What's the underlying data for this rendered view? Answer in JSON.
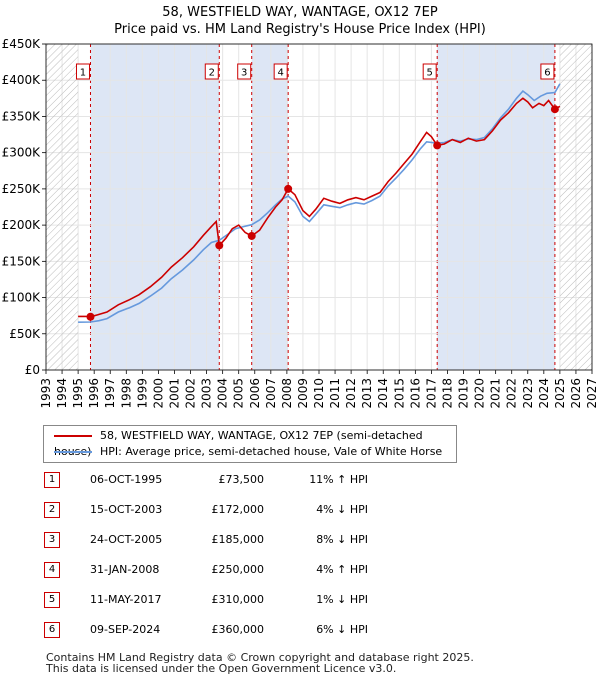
{
  "title": "58, WESTFIELD WAY, WANTAGE, OX12 7EP",
  "subtitle": "Price paid vs. HM Land Registry's House Price Index (HPI)",
  "colors": {
    "property": "#cc0000",
    "hpi": "#6699dd",
    "band": "#dde6f5",
    "hatch": "#bbbbbb",
    "grid": "#e5e5e5"
  },
  "chart_data": {
    "type": "line",
    "title": "58, WESTFIELD WAY, WANTAGE, OX12 7EP — Price paid vs. HM Land Registry's House Price Index (HPI)",
    "xlim": [
      1993,
      2027
    ],
    "ylim": [
      0,
      450000
    ],
    "x_ticks": [
      "1993",
      "1994",
      "1995",
      "1996",
      "1997",
      "1998",
      "1999",
      "2000",
      "2001",
      "2002",
      "2003",
      "2004",
      "2005",
      "2006",
      "2007",
      "2008",
      "2009",
      "2010",
      "2011",
      "2012",
      "2013",
      "2014",
      "2015",
      "2016",
      "2017",
      "2018",
      "2019",
      "2020",
      "2021",
      "2022",
      "2023",
      "2024",
      "2025",
      "2026",
      "2027"
    ],
    "y_ticks": [
      {
        "value": 0,
        "label": "£0"
      },
      {
        "value": 50000,
        "label": "£50K"
      },
      {
        "value": 100000,
        "label": "£100K"
      },
      {
        "value": 150000,
        "label": "£150K"
      },
      {
        "value": 200000,
        "label": "£200K"
      },
      {
        "value": 250000,
        "label": "£250K"
      },
      {
        "value": 300000,
        "label": "£300K"
      },
      {
        "value": 350000,
        "label": "£350K"
      },
      {
        "value": 400000,
        "label": "£400K"
      },
      {
        "value": 450000,
        "label": "£450K"
      }
    ],
    "data_range": [
      1995.0,
      2025.0
    ],
    "series": [
      {
        "name": "58, WESTFIELD WAY, WANTAGE, OX12 7EP (semi-detached house)",
        "color": "#cc0000",
        "points": [
          [
            1995.0,
            74000
          ],
          [
            1995.5,
            74000
          ],
          [
            1995.77,
            73500
          ],
          [
            1996.2,
            76000
          ],
          [
            1996.8,
            80000
          ],
          [
            1997.5,
            90000
          ],
          [
            1998.2,
            97000
          ],
          [
            1998.8,
            104000
          ],
          [
            1999.5,
            115000
          ],
          [
            2000.2,
            128000
          ],
          [
            2000.8,
            142000
          ],
          [
            2001.5,
            155000
          ],
          [
            2002.2,
            170000
          ],
          [
            2002.8,
            186000
          ],
          [
            2003.3,
            198000
          ],
          [
            2003.6,
            205000
          ],
          [
            2003.79,
            172000
          ],
          [
            2004.2,
            182000
          ],
          [
            2004.6,
            195000
          ],
          [
            2005.0,
            200000
          ],
          [
            2005.4,
            190000
          ],
          [
            2005.81,
            185000
          ],
          [
            2006.3,
            193000
          ],
          [
            2006.8,
            210000
          ],
          [
            2007.3,
            225000
          ],
          [
            2007.7,
            235000
          ],
          [
            2008.08,
            250000
          ],
          [
            2008.5,
            242000
          ],
          [
            2009.0,
            220000
          ],
          [
            2009.4,
            212000
          ],
          [
            2009.8,
            222000
          ],
          [
            2010.3,
            237000
          ],
          [
            2010.8,
            233000
          ],
          [
            2011.3,
            230000
          ],
          [
            2011.8,
            235000
          ],
          [
            2012.3,
            238000
          ],
          [
            2012.8,
            235000
          ],
          [
            2013.3,
            240000
          ],
          [
            2013.8,
            245000
          ],
          [
            2014.3,
            260000
          ],
          [
            2014.8,
            272000
          ],
          [
            2015.3,
            285000
          ],
          [
            2015.8,
            298000
          ],
          [
            2016.3,
            315000
          ],
          [
            2016.7,
            328000
          ],
          [
            2017.0,
            322000
          ],
          [
            2017.36,
            310000
          ],
          [
            2017.8,
            312000
          ],
          [
            2018.3,
            318000
          ],
          [
            2018.8,
            314000
          ],
          [
            2019.3,
            320000
          ],
          [
            2019.8,
            316000
          ],
          [
            2020.3,
            318000
          ],
          [
            2020.8,
            330000
          ],
          [
            2021.3,
            345000
          ],
          [
            2021.8,
            355000
          ],
          [
            2022.3,
            368000
          ],
          [
            2022.7,
            375000
          ],
          [
            2023.0,
            370000
          ],
          [
            2023.3,
            362000
          ],
          [
            2023.7,
            368000
          ],
          [
            2024.0,
            365000
          ],
          [
            2024.3,
            372000
          ],
          [
            2024.69,
            360000
          ],
          [
            2025.0,
            364000
          ]
        ]
      },
      {
        "name": "HPI: Average price, semi-detached house, Vale of White Horse",
        "color": "#6699dd",
        "points": [
          [
            1995.0,
            66000
          ],
          [
            1995.77,
            66200
          ],
          [
            1996.3,
            68000
          ],
          [
            1996.8,
            71000
          ],
          [
            1997.5,
            80000
          ],
          [
            1998.2,
            86000
          ],
          [
            1998.8,
            92000
          ],
          [
            1999.5,
            102000
          ],
          [
            2000.2,
            113000
          ],
          [
            2000.8,
            126000
          ],
          [
            2001.5,
            138000
          ],
          [
            2002.2,
            152000
          ],
          [
            2002.8,
            166000
          ],
          [
            2003.3,
            176000
          ],
          [
            2003.79,
            179000
          ],
          [
            2004.3,
            187000
          ],
          [
            2004.8,
            195000
          ],
          [
            2005.3,
            198000
          ],
          [
            2005.81,
            200500
          ],
          [
            2006.3,
            207000
          ],
          [
            2006.8,
            217000
          ],
          [
            2007.3,
            228000
          ],
          [
            2007.7,
            236000
          ],
          [
            2008.08,
            240000
          ],
          [
            2008.5,
            232000
          ],
          [
            2009.0,
            212000
          ],
          [
            2009.4,
            205000
          ],
          [
            2009.8,
            215000
          ],
          [
            2010.3,
            228000
          ],
          [
            2010.8,
            226000
          ],
          [
            2011.3,
            224000
          ],
          [
            2011.8,
            228000
          ],
          [
            2012.3,
            231000
          ],
          [
            2012.8,
            229000
          ],
          [
            2013.3,
            234000
          ],
          [
            2013.8,
            240000
          ],
          [
            2014.3,
            254000
          ],
          [
            2014.8,
            265000
          ],
          [
            2015.3,
            277000
          ],
          [
            2015.8,
            290000
          ],
          [
            2016.3,
            305000
          ],
          [
            2016.7,
            315000
          ],
          [
            2017.36,
            313000
          ],
          [
            2017.8,
            314000
          ],
          [
            2018.3,
            318000
          ],
          [
            2018.8,
            316000
          ],
          [
            2019.3,
            319000
          ],
          [
            2019.8,
            318000
          ],
          [
            2020.3,
            321000
          ],
          [
            2020.8,
            333000
          ],
          [
            2021.3,
            348000
          ],
          [
            2021.8,
            360000
          ],
          [
            2022.3,
            375000
          ],
          [
            2022.7,
            385000
          ],
          [
            2023.0,
            380000
          ],
          [
            2023.4,
            372000
          ],
          [
            2023.8,
            378000
          ],
          [
            2024.2,
            382000
          ],
          [
            2024.69,
            383000
          ],
          [
            2025.0,
            395000
          ]
        ]
      }
    ],
    "sales": [
      {
        "id": "1",
        "x": 1995.77,
        "price": 73500
      },
      {
        "id": "2",
        "x": 2003.79,
        "price": 172000
      },
      {
        "id": "3",
        "x": 2005.81,
        "price": 185000
      },
      {
        "id": "4",
        "x": 2008.08,
        "price": 250000
      },
      {
        "id": "5",
        "x": 2017.36,
        "price": 310000
      },
      {
        "id": "6",
        "x": 2024.69,
        "price": 360000
      }
    ],
    "shaded_bands": [
      [
        1995.77,
        2003.79
      ],
      [
        2005.81,
        2008.08
      ],
      [
        2017.36,
        2024.69
      ]
    ]
  },
  "legend": {
    "property_label": "58, WESTFIELD WAY, WANTAGE, OX12 7EP (semi-detached house)",
    "hpi_label": "HPI: Average price, semi-detached house, Vale of White Horse"
  },
  "sales_table": [
    {
      "num": "1",
      "date": "06-OCT-1995",
      "price": "£73,500",
      "hpi": "11% ↑ HPI"
    },
    {
      "num": "2",
      "date": "15-OCT-2003",
      "price": "£172,000",
      "hpi": "4% ↓ HPI"
    },
    {
      "num": "3",
      "date": "24-OCT-2005",
      "price": "£185,000",
      "hpi": "8% ↓ HPI"
    },
    {
      "num": "4",
      "date": "31-JAN-2008",
      "price": "£250,000",
      "hpi": "4% ↑ HPI"
    },
    {
      "num": "5",
      "date": "11-MAY-2017",
      "price": "£310,000",
      "hpi": "1% ↓ HPI"
    },
    {
      "num": "6",
      "date": "09-SEP-2024",
      "price": "£360,000",
      "hpi": "6% ↓ HPI"
    }
  ],
  "footer": {
    "line1": "Contains HM Land Registry data © Crown copyright and database right 2025.",
    "line2": "This data is licensed under the Open Government Licence v3.0."
  }
}
